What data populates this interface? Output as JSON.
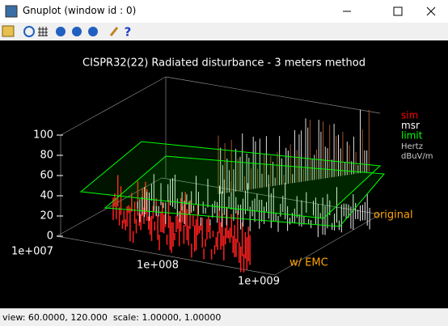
{
  "window": {
    "title": "Gnuplot (window id : 0)"
  },
  "plot": {
    "title": "CISPR32(22) Radiated disturbance - 3 meters method",
    "z_ticks": [
      "0",
      "20",
      "40",
      "60",
      "80",
      "100"
    ],
    "x_ticks": [
      "1e+007",
      "1e+008",
      "1e+009"
    ],
    "y_labels": [
      "original",
      "w/ EMC"
    ],
    "legend": [
      {
        "label": "sim",
        "color": "#ff0000"
      },
      {
        "label": "msr",
        "color": "#ffffff"
      },
      {
        "label": "limit",
        "color": "#00ff00"
      }
    ],
    "legend_notes": [
      "Hertz",
      "dBuV/m"
    ]
  },
  "status_bar": {
    "text": "view: 60.0000, 120.000  scale: 1.00000, 1.00000"
  }
}
